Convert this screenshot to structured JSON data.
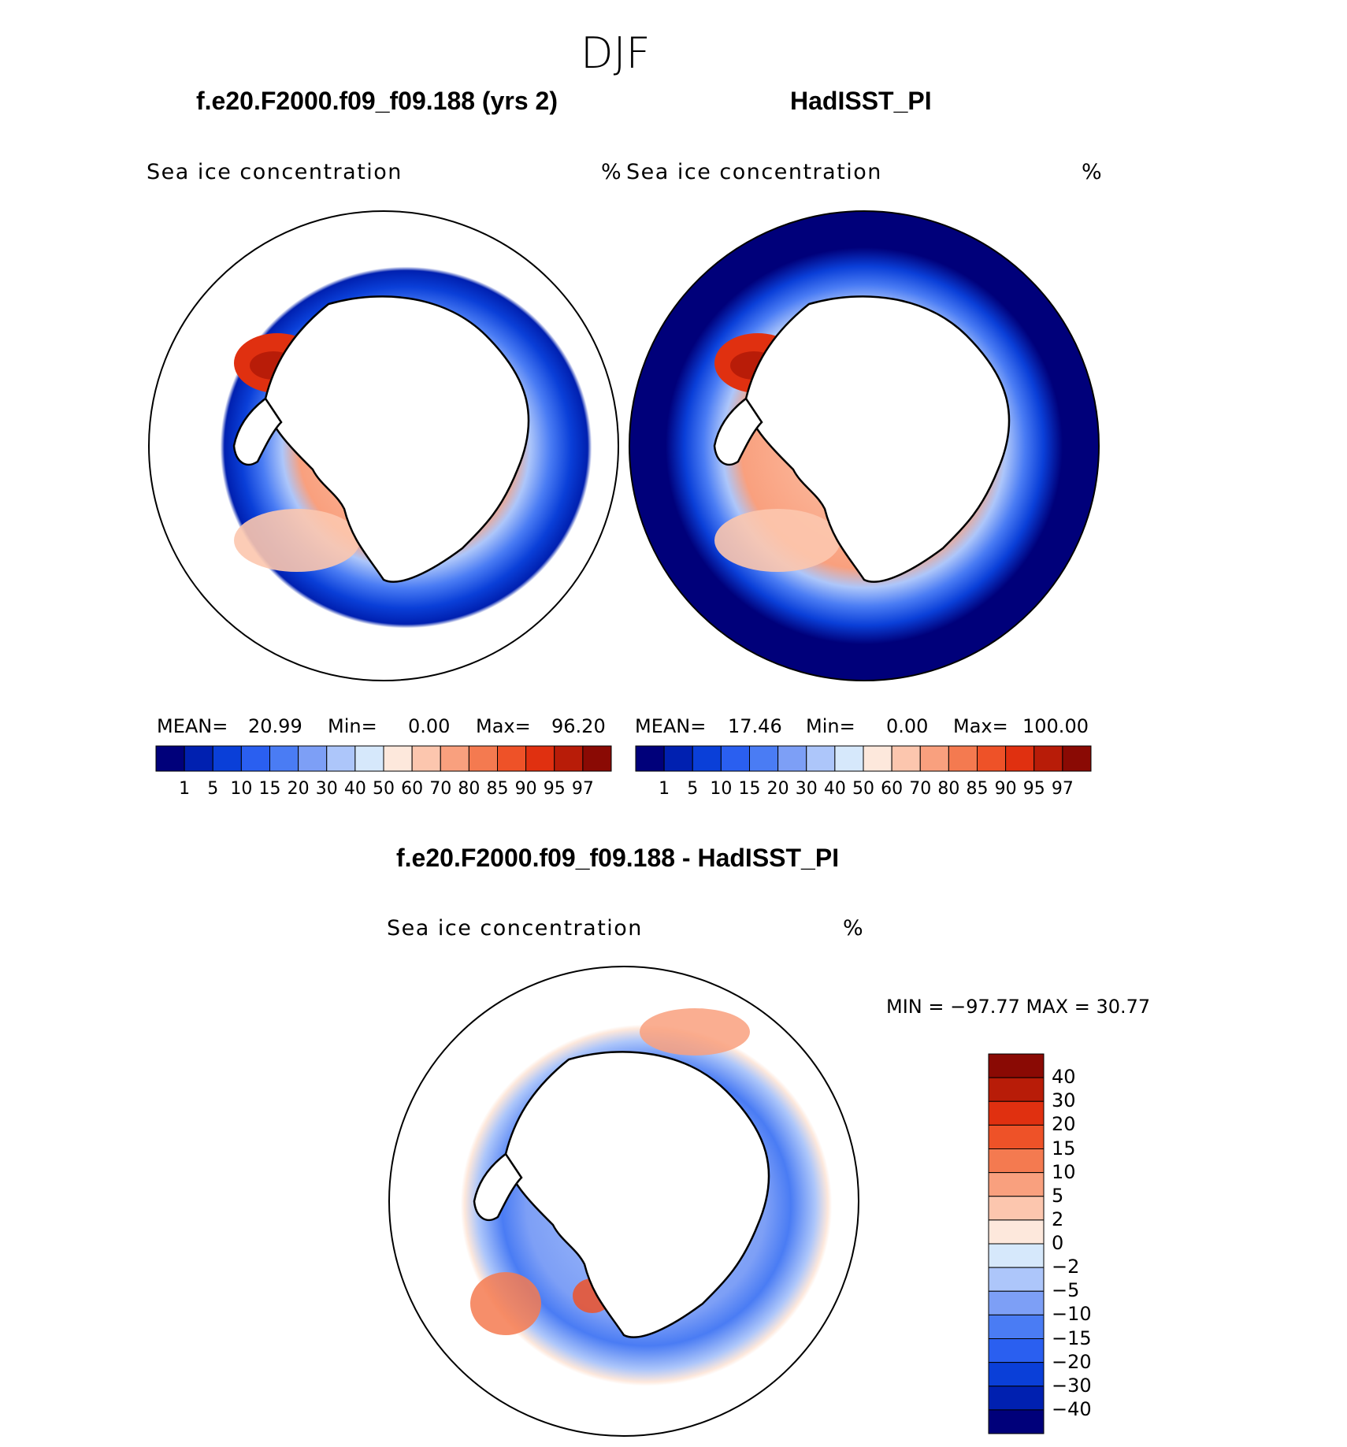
{
  "figure_title": "DJF",
  "panels": [
    {
      "title": "f.e20.F2000.f09_f09.188 (yrs 2)",
      "subtitle": "Sea ice concentration",
      "units": "%",
      "stats": {
        "mean_label": "MEAN=",
        "mean": "20.99",
        "min_label": "Min=",
        "min": "0.00",
        "max_label": "Max=",
        "max": "96.20"
      }
    },
    {
      "title": "HadISST_PI",
      "subtitle": "Sea ice concentration",
      "units": "%",
      "stats": {
        "mean_label": "MEAN=",
        "mean": "17.46",
        "min_label": "Min=",
        "min": "0.00",
        "max_label": "Max=",
        "max": "100.00"
      }
    },
    {
      "title": "f.e20.F2000.f09_f09.188 - HadISST_PI",
      "subtitle": "Sea ice concentration",
      "units": "%",
      "minmax": "MIN = −97.77 MAX =   30.77"
    }
  ],
  "abs_colorbar": {
    "labels": [
      "1",
      "5",
      "10",
      "15",
      "20",
      "30",
      "40",
      "50",
      "60",
      "70",
      "80",
      "85",
      "90",
      "95",
      "97"
    ],
    "colors": [
      "#00007a",
      "#0020b0",
      "#0a3fd8",
      "#2a5ff0",
      "#4a7cf4",
      "#7d9ff6",
      "#adc6fa",
      "#d6e8fb",
      "#fde8dc",
      "#fcc6ae",
      "#f9a07e",
      "#f47a50",
      "#ee5228",
      "#e03010",
      "#b81c08",
      "#8a0a04"
    ]
  },
  "diff_colorbar": {
    "labels": [
      "40",
      "30",
      "20",
      "15",
      "10",
      "5",
      "2",
      "0",
      "−2",
      "−5",
      "−10",
      "−15",
      "−20",
      "−30",
      "−40"
    ],
    "colors": [
      "#8a0a04",
      "#b81c08",
      "#e03010",
      "#ee5228",
      "#f47a50",
      "#f9a07e",
      "#fcc6ae",
      "#fde8dc",
      "#d6e8fb",
      "#adc6fa",
      "#7d9ff6",
      "#4a7cf4",
      "#2a5ff0",
      "#0a3fd8",
      "#0020b0",
      "#00007a"
    ]
  }
}
